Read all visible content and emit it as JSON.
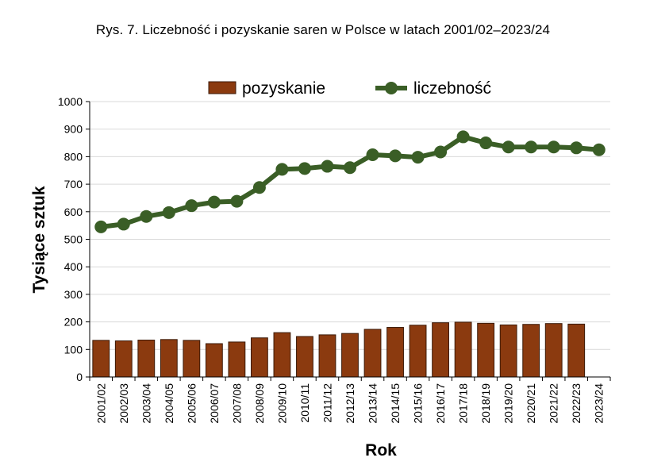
{
  "title": "Rys. 7. Liczebność i pozyskanie saren w Polsce w latach 2001/02–2023/24",
  "colors": {
    "bar_fill": "#8b3a0f",
    "bar_stroke": "#3b1a08",
    "line": "#3a5e26",
    "grid": "#d9d9d9"
  },
  "chart_data": {
    "type": "bar",
    "xlabel": "Rok",
    "ylabel": "Tysiące sztuk",
    "ylim": [
      0,
      1000
    ],
    "yticks": [
      0,
      100,
      200,
      300,
      400,
      500,
      600,
      700,
      800,
      900,
      1000
    ],
    "grid": "horizontal",
    "legend_position": "top",
    "categories": [
      "2001/02",
      "2002/03",
      "2003/04",
      "2004/05",
      "2005/06",
      "2006/07",
      "2007/08",
      "2008/09",
      "2009/10",
      "2010/11",
      "2011/12",
      "2012/13",
      "2013/14",
      "2014/15",
      "2015/16",
      "2016/17",
      "2017/18",
      "2018/19",
      "2019/20",
      "2020/21",
      "2021/22",
      "2022/23",
      "2023/24"
    ],
    "series": [
      {
        "name": "pozyskanie",
        "type": "bar",
        "values": [
          133,
          131,
          134,
          136,
          133,
          121,
          127,
          142,
          161,
          147,
          153,
          158,
          173,
          180,
          188,
          197,
          199,
          195,
          189,
          191,
          194,
          192,
          null
        ]
      },
      {
        "name": "liczebność",
        "type": "line",
        "values": [
          545,
          555,
          583,
          597,
          622,
          635,
          638,
          688,
          754,
          757,
          765,
          760,
          807,
          803,
          798,
          817,
          872,
          850,
          835,
          835,
          835,
          832,
          825
        ]
      }
    ]
  }
}
